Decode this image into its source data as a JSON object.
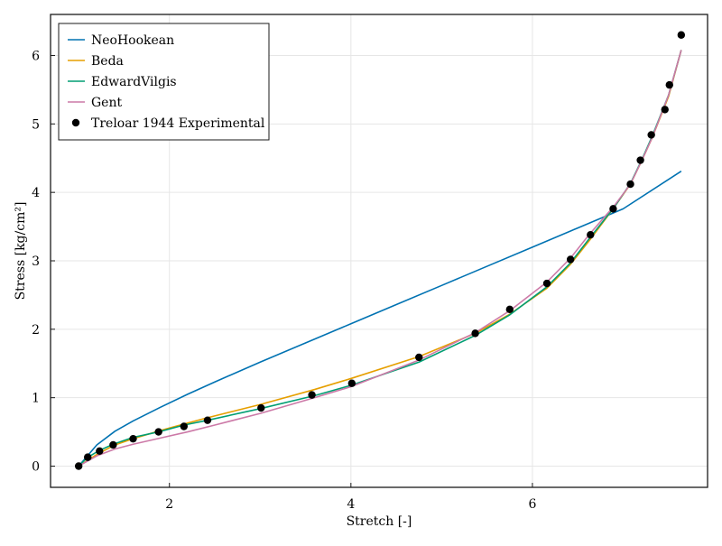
{
  "chart_data": {
    "type": "line",
    "title": "",
    "xlabel": "Stretch [-]",
    "ylabel": "Stress [kg/cm²]",
    "xlim": [
      0.69,
      7.93
    ],
    "ylim": [
      -0.31,
      6.6
    ],
    "x_ticks": [
      {
        "value": 2,
        "label": "2"
      },
      {
        "value": 4,
        "label": "4"
      },
      {
        "value": 6,
        "label": "6"
      }
    ],
    "y_ticks": [
      {
        "value": 0,
        "label": "0"
      },
      {
        "value": 1,
        "label": "1"
      },
      {
        "value": 2,
        "label": "2"
      },
      {
        "value": 3,
        "label": "3"
      },
      {
        "value": 4,
        "label": "4"
      },
      {
        "value": 5,
        "label": "5"
      },
      {
        "value": 6,
        "label": "6"
      }
    ],
    "grid": true,
    "legend_position": "top-left",
    "series": [
      {
        "name": "NeoHookean",
        "kind": "line",
        "color": "#0072b2",
        "x": [
          1.0,
          1.2,
          1.4,
          1.6,
          1.9,
          2.2,
          2.5,
          3.0,
          3.5,
          4.0,
          4.5,
          5.0,
          5.5,
          6.0,
          6.5,
          7.0,
          7.64
        ],
        "y": [
          0.0,
          0.31,
          0.51,
          0.66,
          0.86,
          1.05,
          1.23,
          1.52,
          1.8,
          2.08,
          2.36,
          2.64,
          2.92,
          3.2,
          3.48,
          3.76,
          4.31
        ]
      },
      {
        "name": "Beda",
        "kind": "line",
        "color": "#e69f00",
        "x": [
          1.0,
          1.2,
          1.4,
          1.6,
          1.9,
          2.2,
          2.4,
          3.0,
          3.6,
          4.0,
          4.75,
          5.37,
          5.75,
          6.16,
          6.42,
          6.63,
          6.9,
          7.08,
          7.2,
          7.32,
          7.5,
          7.64
        ],
        "y": [
          0.0,
          0.17,
          0.31,
          0.4,
          0.52,
          0.63,
          0.7,
          0.9,
          1.12,
          1.28,
          1.6,
          1.94,
          2.22,
          2.6,
          2.95,
          3.3,
          3.78,
          4.12,
          4.45,
          4.8,
          5.4,
          6.08
        ]
      },
      {
        "name": "EdwardVilgis",
        "kind": "line",
        "color": "#009e73",
        "x": [
          1.0,
          1.1,
          1.23,
          1.38,
          1.6,
          1.88,
          2.16,
          2.42,
          3.0,
          3.6,
          4.0,
          4.75,
          5.37,
          5.75,
          6.16,
          6.42,
          6.63,
          6.9,
          7.08,
          7.2,
          7.32,
          7.5,
          7.64
        ],
        "y": [
          0.0,
          0.13,
          0.23,
          0.32,
          0.42,
          0.5,
          0.6,
          0.67,
          0.84,
          1.03,
          1.18,
          1.52,
          1.91,
          2.21,
          2.62,
          2.97,
          3.33,
          3.78,
          4.13,
          4.46,
          4.82,
          5.42,
          6.08
        ]
      },
      {
        "name": "Gent",
        "kind": "line",
        "color": "#cc79a7",
        "x": [
          1.0,
          1.2,
          1.4,
          1.6,
          1.9,
          2.2,
          2.5,
          3.0,
          3.6,
          4.0,
          4.75,
          5.37,
          5.75,
          6.16,
          6.42,
          6.63,
          6.9,
          7.08,
          7.2,
          7.32,
          7.5,
          7.64
        ],
        "y": [
          0.0,
          0.15,
          0.25,
          0.32,
          0.41,
          0.5,
          0.6,
          0.77,
          1.0,
          1.16,
          1.55,
          1.95,
          2.27,
          2.69,
          3.04,
          3.39,
          3.8,
          4.12,
          4.45,
          4.8,
          5.42,
          6.08
        ]
      },
      {
        "name": "Treloar 1944 Experimental",
        "kind": "scatter",
        "color": "#000000",
        "x": [
          1.0,
          1.1,
          1.23,
          1.38,
          1.6,
          1.88,
          2.16,
          2.42,
          3.01,
          3.57,
          4.01,
          4.75,
          5.37,
          5.75,
          6.16,
          6.42,
          6.64,
          6.89,
          7.08,
          7.19,
          7.31,
          7.46,
          7.51,
          7.64
        ],
        "y": [
          0.0,
          0.13,
          0.22,
          0.31,
          0.4,
          0.5,
          0.58,
          0.67,
          0.85,
          1.04,
          1.21,
          1.59,
          1.94,
          2.29,
          2.67,
          3.02,
          3.38,
          3.76,
          4.12,
          4.47,
          4.84,
          5.21,
          5.57,
          6.3
        ]
      }
    ]
  }
}
